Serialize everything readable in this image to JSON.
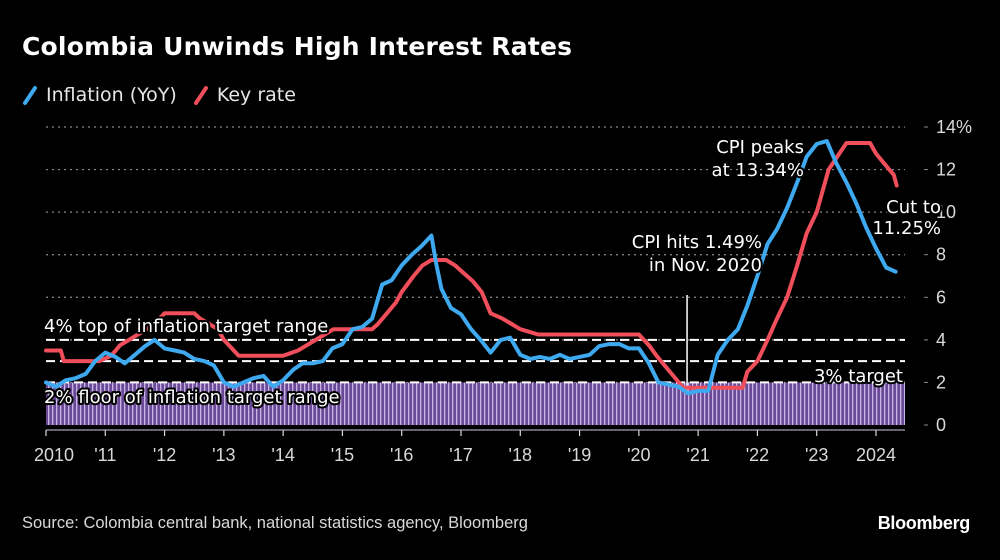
{
  "header": {
    "title": "Colombia Unwinds High Interest Rates"
  },
  "legend": [
    {
      "label": "Inflation (YoY)",
      "color": "#3ea9ef"
    },
    {
      "label": "Key rate",
      "color": "#f04e5a"
    }
  ],
  "footer": {
    "source": "Source: Colombia central bank, national statistics agency, Bloomberg",
    "brand": "Bloomberg"
  },
  "chart_data": {
    "type": "line",
    "title": "Colombia Unwinds High Interest Rates",
    "xlabel": "",
    "ylabel": "",
    "xlim": [
      2010.0,
      2024.75
    ],
    "ylim": [
      0,
      14
    ],
    "y_ticks": [
      0,
      2,
      4,
      6,
      8,
      10,
      12,
      14
    ],
    "y_tick_labels": [
      "0",
      "2",
      "4",
      "6",
      "8",
      "10",
      "12",
      "14%"
    ],
    "x_ticks": [
      2010,
      2011,
      2012,
      2013,
      2014,
      2015,
      2016,
      2017,
      2018,
      2019,
      2020,
      2021,
      2022,
      2023,
      2024
    ],
    "x_tick_labels": [
      "2010",
      "'11",
      "'12",
      "'13",
      "'14",
      "'15",
      "'16",
      "'17",
      "'18",
      "'19",
      "'20",
      "'21",
      "'22",
      "'23",
      "2024"
    ],
    "grid": true,
    "legend_position": "top-left",
    "series": [
      {
        "name": "Inflation (YoY)",
        "color": "#3ea9ef",
        "x": [
          2010.0,
          2010.17,
          2010.33,
          2010.5,
          2010.67,
          2010.83,
          2011.0,
          2011.17,
          2011.33,
          2011.5,
          2011.67,
          2011.83,
          2012.0,
          2012.17,
          2012.33,
          2012.5,
          2012.67,
          2012.83,
          2013.0,
          2013.17,
          2013.33,
          2013.5,
          2013.67,
          2013.83,
          2014.0,
          2014.17,
          2014.33,
          2014.5,
          2014.67,
          2014.83,
          2015.0,
          2015.17,
          2015.33,
          2015.5,
          2015.67,
          2015.83,
          2016.0,
          2016.17,
          2016.33,
          2016.5,
          2016.58,
          2016.67,
          2016.83,
          2017.0,
          2017.17,
          2017.33,
          2017.5,
          2017.67,
          2017.83,
          2018.0,
          2018.17,
          2018.33,
          2018.5,
          2018.67,
          2018.83,
          2019.0,
          2019.17,
          2019.33,
          2019.5,
          2019.67,
          2019.83,
          2020.0,
          2020.17,
          2020.33,
          2020.5,
          2020.67,
          2020.83,
          2021.0,
          2021.17,
          2021.33,
          2021.5,
          2021.67,
          2021.83,
          2022.0,
          2022.17,
          2022.33,
          2022.5,
          2022.67,
          2022.83,
          2023.0,
          2023.17,
          2023.33,
          2023.5,
          2023.67,
          2023.83,
          2024.0,
          2024.17,
          2024.33
        ],
        "values": [
          2.0,
          1.8,
          2.1,
          2.2,
          2.4,
          3.0,
          3.4,
          3.2,
          2.9,
          3.3,
          3.7,
          4.0,
          3.6,
          3.5,
          3.4,
          3.1,
          3.0,
          2.8,
          2.0,
          1.8,
          2.0,
          2.2,
          2.3,
          1.8,
          2.1,
          2.6,
          2.9,
          2.9,
          3.0,
          3.6,
          3.8,
          4.5,
          4.6,
          5.0,
          6.6,
          6.8,
          7.5,
          8.0,
          8.4,
          8.9,
          7.6,
          6.4,
          5.5,
          5.2,
          4.5,
          4.0,
          3.4,
          4.0,
          4.1,
          3.3,
          3.1,
          3.2,
          3.1,
          3.3,
          3.1,
          3.2,
          3.3,
          3.7,
          3.8,
          3.8,
          3.6,
          3.6,
          2.9,
          2.0,
          1.9,
          1.8,
          1.49,
          1.6,
          1.6,
          3.3,
          4.0,
          4.5,
          5.6,
          7.0,
          8.5,
          9.2,
          10.2,
          11.4,
          12.6,
          13.2,
          13.34,
          12.3,
          11.4,
          10.4,
          9.3,
          8.3,
          7.4,
          7.2
        ],
        "annotations": [
          {
            "text": [
              "CPI hits 1.49%",
              "in Nov. 2020"
            ],
            "x": 2020.83,
            "y": 1.49
          },
          {
            "text": [
              "CPI peaks",
              "at 13.34%"
            ],
            "x": 2023.17,
            "y": 13.34
          }
        ]
      },
      {
        "name": "Key rate",
        "color": "#f04e5a",
        "x": [
          2010.0,
          2010.25,
          2010.3,
          2010.6,
          2010.9,
          2011.1,
          2011.25,
          2011.4,
          2011.55,
          2011.7,
          2011.83,
          2012.0,
          2012.2,
          2012.5,
          2012.6,
          2012.75,
          2012.9,
          2013.0,
          2013.25,
          2013.5,
          2013.75,
          2014.0,
          2014.25,
          2014.4,
          2014.55,
          2014.7,
          2014.85,
          2015.0,
          2015.3,
          2015.5,
          2015.6,
          2015.75,
          2015.9,
          2016.0,
          2016.2,
          2016.35,
          2016.5,
          2016.75,
          2016.9,
          2017.0,
          2017.2,
          2017.35,
          2017.5,
          2017.7,
          2017.85,
          2018.0,
          2018.3,
          2018.5,
          2019.0,
          2019.5,
          2020.0,
          2020.17,
          2020.3,
          2020.45,
          2020.6,
          2020.75,
          2020.83,
          2021.0,
          2021.5,
          2021.75,
          2021.83,
          2022.0,
          2022.17,
          2022.33,
          2022.5,
          2022.67,
          2022.83,
          2023.0,
          2023.2,
          2023.5,
          2023.75,
          2023.9,
          2024.0,
          2024.15,
          2024.3,
          2024.35
        ],
        "values": [
          3.5,
          3.5,
          3.0,
          3.0,
          3.0,
          3.25,
          3.75,
          4.0,
          4.25,
          4.5,
          4.75,
          5.25,
          5.25,
          5.25,
          5.0,
          4.75,
          4.5,
          4.0,
          3.25,
          3.25,
          3.25,
          3.25,
          3.5,
          3.75,
          4.0,
          4.25,
          4.5,
          4.5,
          4.5,
          4.5,
          4.75,
          5.25,
          5.75,
          6.25,
          7.0,
          7.5,
          7.75,
          7.75,
          7.5,
          7.25,
          6.75,
          6.25,
          5.25,
          5.0,
          4.75,
          4.5,
          4.25,
          4.25,
          4.25,
          4.25,
          4.25,
          3.75,
          3.25,
          2.75,
          2.25,
          1.75,
          1.75,
          1.75,
          1.75,
          1.75,
          2.5,
          3.0,
          4.0,
          5.0,
          6.0,
          7.5,
          9.0,
          10.0,
          12.0,
          13.25,
          13.25,
          13.25,
          12.75,
          12.25,
          11.75,
          11.25
        ],
        "annotations": [
          {
            "text": [
              "Cut to",
              "11.25%"
            ],
            "x": 2024.35,
            "y": 11.25
          }
        ]
      }
    ],
    "reference_lines": [
      {
        "value": 4,
        "label": "4% top of inflation target range",
        "style": "dashed"
      },
      {
        "value": 3,
        "label": "3% target",
        "style": "dashed"
      },
      {
        "value": 2,
        "label": "2% floor of inflation target range",
        "style": "dashed"
      }
    ],
    "shaded_band": {
      "from": 0,
      "to": 2,
      "color": "#7a58a8"
    }
  }
}
